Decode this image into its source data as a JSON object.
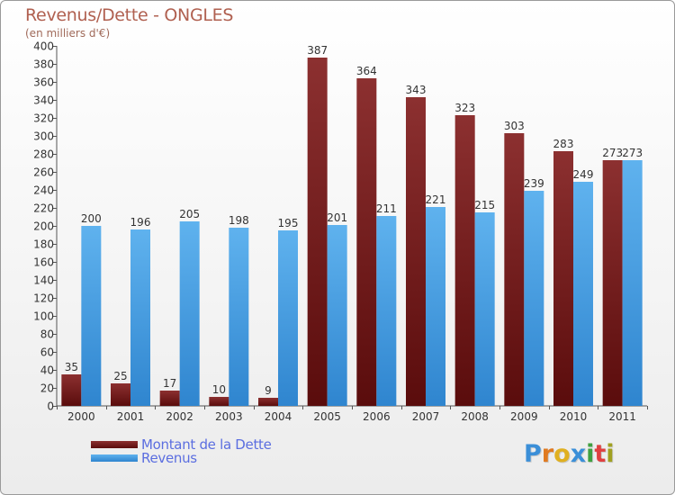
{
  "chart_data": {
    "type": "bar",
    "title": "Revenus/Dette - ONGLES",
    "subtitle": "(en milliers d'€)",
    "categories": [
      "2000",
      "2001",
      "2002",
      "2003",
      "2004",
      "2005",
      "2006",
      "2007",
      "2008",
      "2009",
      "2010",
      "2011"
    ],
    "series": [
      {
        "name": "Montant de la Dette",
        "color": "#7a2020",
        "values": [
          35,
          25,
          17,
          10,
          9,
          387,
          364,
          343,
          323,
          303,
          283,
          273
        ]
      },
      {
        "name": "Revenus",
        "color": "#4aa3e8",
        "values": [
          200,
          196,
          205,
          198,
          195,
          201,
          211,
          221,
          215,
          239,
          249,
          273
        ]
      }
    ],
    "ylim": [
      0,
      400
    ],
    "ytick_step": 20,
    "grid": false,
    "legend_position": "bottom-left"
  },
  "logo": {
    "letters": [
      "P",
      "r",
      "o",
      "x",
      "i",
      "t",
      "i"
    ],
    "colors": [
      "#3b8fd8",
      "#e07a20",
      "#e0b020",
      "#3b8fd8",
      "#40a040",
      "#e04040",
      "#a0a020"
    ]
  }
}
